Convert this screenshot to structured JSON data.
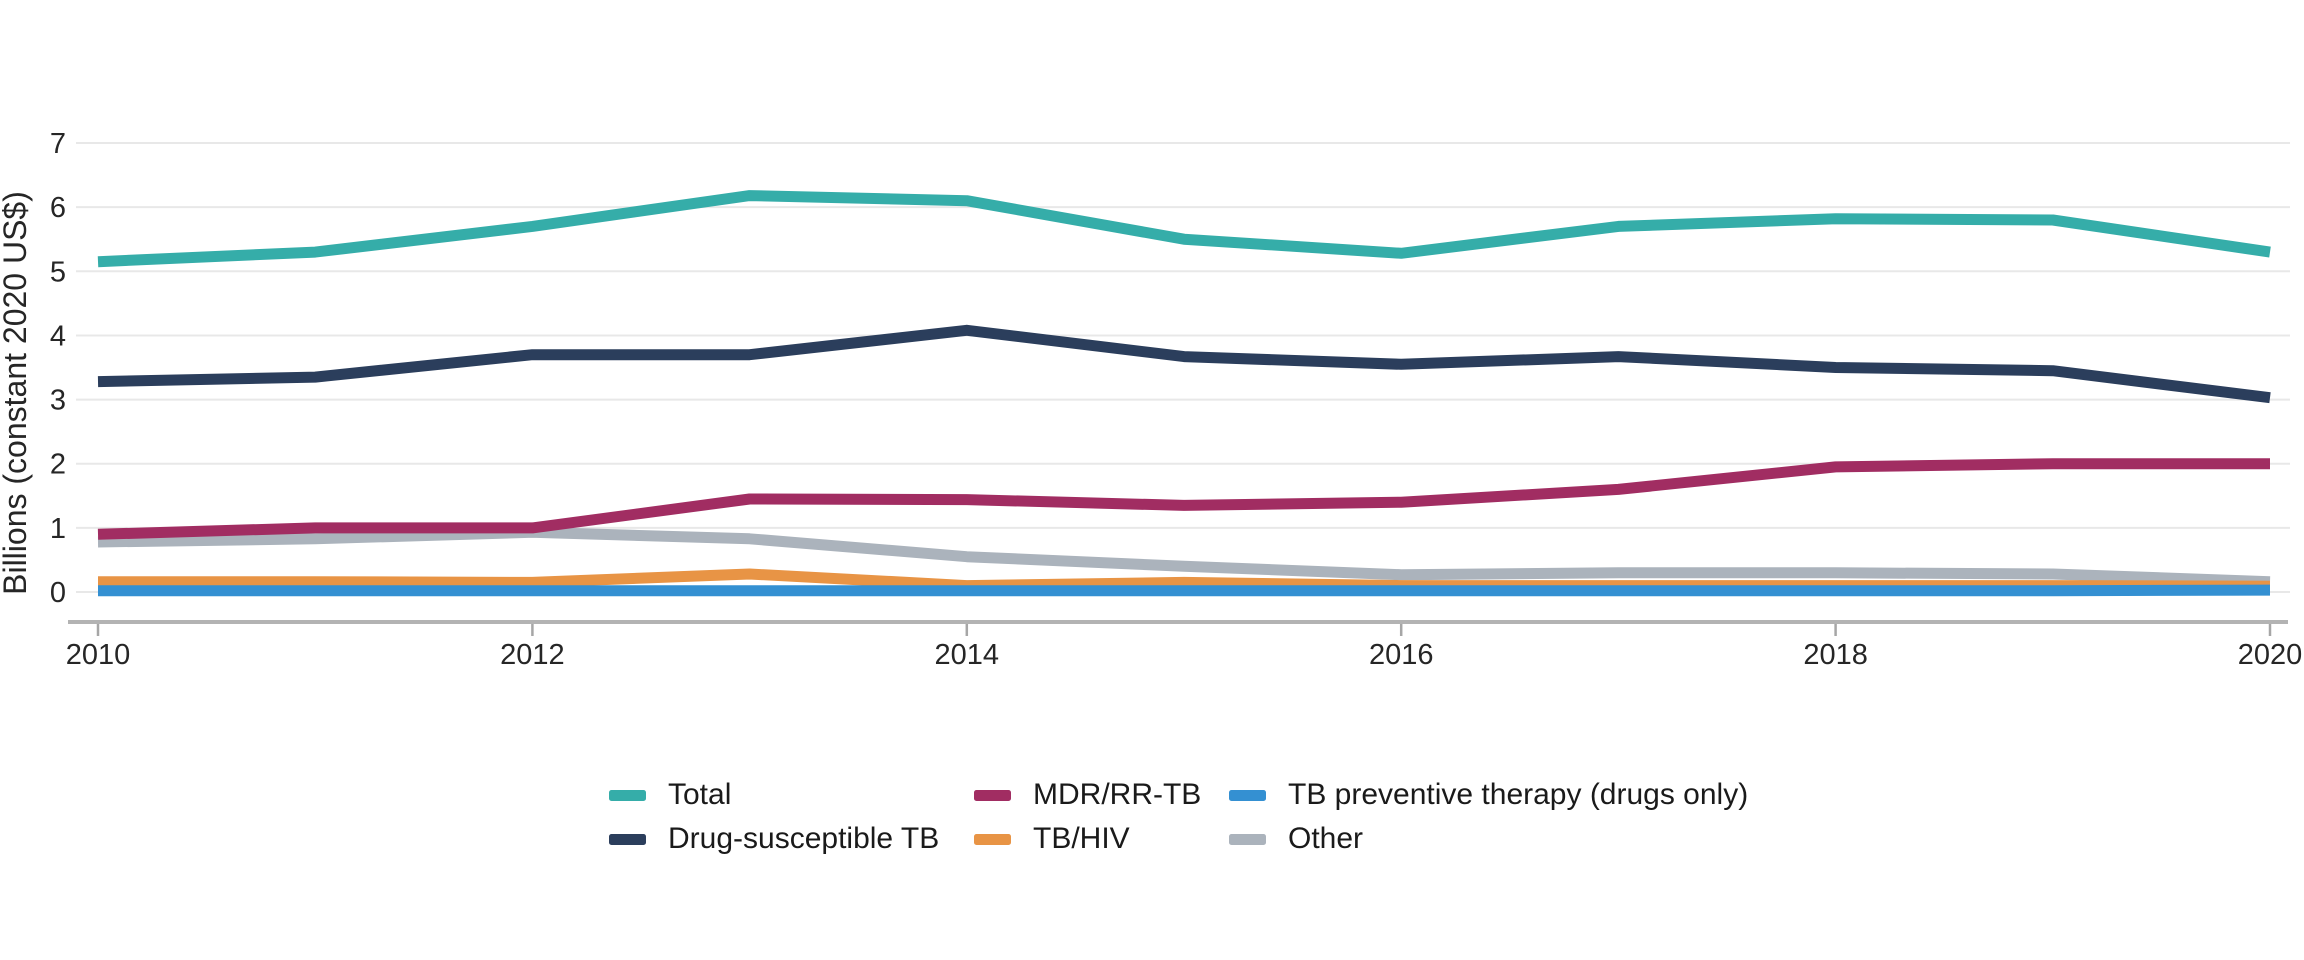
{
  "chart_data": {
    "type": "line",
    "title": "",
    "xlabel": "",
    "ylabel": "Billions (constant 2020 US$)",
    "ylim": [
      0,
      7
    ],
    "grid": true,
    "legend_position": "bottom",
    "categories": [
      2010,
      2011,
      2012,
      2013,
      2014,
      2015,
      2016,
      2017,
      2018,
      2019,
      2020
    ],
    "x_ticks": [
      2010,
      2012,
      2014,
      2016,
      2018,
      2020
    ],
    "y_ticks": [
      0,
      1,
      2,
      3,
      4,
      5,
      6,
      7
    ],
    "series": [
      {
        "id": "total",
        "label": "Total",
        "color": "#35ada9",
        "z": 6,
        "values": [
          5.15,
          5.3,
          5.7,
          6.18,
          6.1,
          5.5,
          5.28,
          5.7,
          5.82,
          5.8,
          5.3
        ]
      },
      {
        "id": "ds-tb",
        "label": "Drug-susceptible TB",
        "color": "#2b3e5c",
        "z": 5,
        "values": [
          3.28,
          3.35,
          3.7,
          3.7,
          4.08,
          3.67,
          3.55,
          3.67,
          3.5,
          3.45,
          3.03
        ]
      },
      {
        "id": "mdr-rr-tb",
        "label": "MDR/RR-TB",
        "color": "#a12d62",
        "z": 4,
        "values": [
          0.9,
          1.0,
          1.0,
          1.45,
          1.44,
          1.35,
          1.4,
          1.6,
          1.95,
          2.0,
          2.0
        ]
      },
      {
        "id": "tb-hiv",
        "label": "TB/HIV",
        "color": "#e89445",
        "z": 2,
        "values": [
          0.16,
          0.16,
          0.15,
          0.28,
          0.1,
          0.15,
          0.1,
          0.1,
          0.1,
          0.1,
          0.09
        ]
      },
      {
        "id": "tb-preventive-therapy",
        "label": "TB preventive therapy (drugs only)",
        "color": "#3490d2",
        "z": 3,
        "values": [
          0.02,
          0.02,
          0.02,
          0.02,
          0.02,
          0.02,
          0.02,
          0.02,
          0.02,
          0.02,
          0.03
        ]
      },
      {
        "id": "other",
        "label": "Other",
        "color": "#abb3bc",
        "z": 1,
        "values": [
          0.78,
          0.83,
          0.93,
          0.83,
          0.55,
          0.4,
          0.27,
          0.3,
          0.3,
          0.28,
          0.16
        ]
      }
    ]
  },
  "legend": {
    "items": [
      {
        "label": "Total",
        "color": "#35ada9"
      },
      {
        "label": "MDR/RR-TB",
        "color": "#a12d62"
      },
      {
        "label": "TB preventive therapy (drugs only)",
        "color": "#3490d2"
      },
      {
        "label": "Drug-susceptible TB",
        "color": "#2b3e5c"
      },
      {
        "label": "TB/HIV",
        "color": "#e89445"
      },
      {
        "label": "Other",
        "color": "#abb3bc"
      }
    ]
  },
  "style": {
    "gridline_color": "#e8e8e8",
    "axis_line_color": "#b3b3b3",
    "tick_color": "#a6a6a6",
    "tick_label_color": "#262626",
    "background": "#ffffff"
  }
}
